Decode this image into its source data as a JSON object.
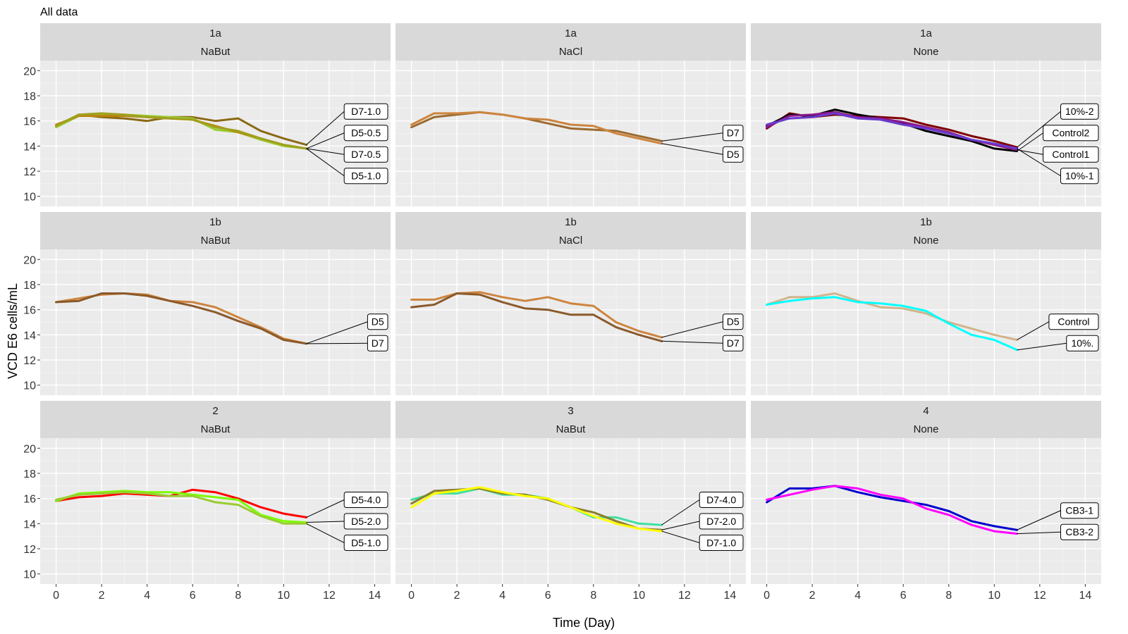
{
  "chart_data": {
    "type": "line",
    "title": "All data",
    "xlabel": "Time (Day)",
    "ylabel": "VCD E6 cells/mL",
    "xlim": [
      -0.7,
      14.7
    ],
    "ylim": [
      9.2,
      20.8
    ],
    "xticks": [
      0,
      2,
      4,
      6,
      8,
      10,
      12,
      14
    ],
    "yticks": [
      10,
      12,
      14,
      16,
      18,
      20
    ],
    "grid": true,
    "panels": [
      {
        "strip_top": "1a",
        "strip_bottom": "NaBut",
        "series": [
          {
            "name": "D7-1.0",
            "label": "D7-1.0",
            "color": "#8B6914",
            "x": [
              0,
              1,
              2,
              3,
              4,
              5,
              6,
              7,
              8,
              9,
              10,
              11
            ],
            "y": [
              15.6,
              16.5,
              16.3,
              16.2,
              16.0,
              16.3,
              16.3,
              16.0,
              16.2,
              15.2,
              14.6,
              14.1
            ]
          },
          {
            "name": "D5-0.5",
            "label": "D5-0.5",
            "color": "#9ACD32",
            "x": [
              0,
              1,
              2,
              3,
              4,
              5,
              6,
              7,
              8,
              9,
              10,
              11
            ],
            "y": [
              15.5,
              16.4,
              16.5,
              16.5,
              16.4,
              16.3,
              16.2,
              15.3,
              15.1,
              14.5,
              14.0,
              13.8
            ]
          },
          {
            "name": "D7-0.5",
            "label": "D7-0.5",
            "color": "#B8860B",
            "x": [
              0,
              1,
              2,
              3,
              4,
              5,
              6,
              7,
              8,
              9,
              10,
              11
            ],
            "y": [
              15.7,
              16.4,
              16.4,
              16.4,
              16.3,
              16.2,
              16.1,
              15.6,
              15.1,
              14.6,
              14.1,
              13.8
            ]
          },
          {
            "name": "D5-1.0",
            "label": "D5-1.0",
            "color": "#A0A020",
            "x": [
              0,
              1,
              2,
              3,
              4,
              5,
              6,
              7,
              8,
              9,
              10,
              11
            ],
            "y": [
              15.6,
              16.5,
              16.6,
              16.5,
              16.3,
              16.2,
              16.1,
              15.5,
              15.2,
              14.6,
              14.1,
              13.8
            ]
          }
        ]
      },
      {
        "strip_top": "1a",
        "strip_bottom": "NaCl",
        "series": [
          {
            "name": "D7",
            "label": "D7",
            "color": "#9C6B30",
            "x": [
              0,
              1,
              2,
              3,
              4,
              5,
              6,
              7,
              8,
              9,
              10,
              11
            ],
            "y": [
              15.5,
              16.3,
              16.5,
              16.7,
              16.5,
              16.2,
              15.8,
              15.4,
              15.3,
              15.2,
              14.8,
              14.4
            ]
          },
          {
            "name": "D5",
            "label": "D5",
            "color": "#CD853F",
            "x": [
              0,
              1,
              2,
              3,
              4,
              5,
              6,
              7,
              8,
              9,
              10,
              11
            ],
            "y": [
              15.7,
              16.6,
              16.6,
              16.7,
              16.5,
              16.2,
              16.1,
              15.7,
              15.6,
              15.0,
              14.6,
              14.2
            ]
          }
        ]
      },
      {
        "strip_top": "1a",
        "strip_bottom": "None",
        "series": [
          {
            "name": "10%-2",
            "label": "10%-2",
            "color": "#800000",
            "x": [
              0,
              1,
              2,
              3,
              4,
              5,
              6,
              7,
              8,
              9,
              10,
              11
            ],
            "y": [
              15.4,
              16.6,
              16.3,
              16.5,
              16.4,
              16.3,
              16.2,
              15.7,
              15.3,
              14.8,
              14.4,
              13.9
            ]
          },
          {
            "name": "Control2",
            "label": "Control2",
            "color": "#000000",
            "x": [
              0,
              1,
              2,
              3,
              4,
              5,
              6,
              7,
              8,
              9,
              10,
              11
            ],
            "y": [
              15.6,
              16.5,
              16.4,
              16.9,
              16.5,
              16.2,
              15.8,
              15.2,
              14.8,
              14.4,
              13.8,
              13.6
            ]
          },
          {
            "name": "Control1",
            "label": "Control1",
            "color": "#8B1A8B",
            "x": [
              0,
              1,
              2,
              3,
              4,
              5,
              6,
              7,
              8,
              9,
              10,
              11
            ],
            "y": [
              15.5,
              16.4,
              16.5,
              16.7,
              16.3,
              16.2,
              15.9,
              15.5,
              15.1,
              14.5,
              14.1,
              13.7
            ]
          },
          {
            "name": "10%-1",
            "label": "10%-1",
            "color": "#6A3ACD",
            "x": [
              0,
              1,
              2,
              3,
              4,
              5,
              6,
              7,
              8,
              9,
              10,
              11
            ],
            "y": [
              15.7,
              16.2,
              16.3,
              16.6,
              16.2,
              16.1,
              15.7,
              15.4,
              15.0,
              14.5,
              14.2,
              13.8
            ]
          }
        ]
      },
      {
        "strip_top": "1b",
        "strip_bottom": "NaBut",
        "series": [
          {
            "name": "D5",
            "label": "D5",
            "color": "#CD853F",
            "x": [
              0,
              1,
              2,
              3,
              4,
              5,
              6,
              7,
              8,
              9,
              10,
              11
            ],
            "y": [
              16.6,
              16.9,
              17.2,
              17.3,
              17.2,
              16.7,
              16.6,
              16.2,
              15.4,
              14.6,
              13.7,
              13.3
            ]
          },
          {
            "name": "D7",
            "label": "D7",
            "color": "#8B5A2B",
            "x": [
              0,
              1,
              2,
              3,
              4,
              5,
              6,
              7,
              8,
              9,
              10,
              11
            ],
            "y": [
              16.6,
              16.7,
              17.3,
              17.3,
              17.1,
              16.7,
              16.3,
              15.8,
              15.1,
              14.5,
              13.6,
              13.3
            ]
          }
        ]
      },
      {
        "strip_top": "1b",
        "strip_bottom": "NaCl",
        "series": [
          {
            "name": "D5",
            "label": "D5",
            "color": "#CD853F",
            "x": [
              0,
              1,
              2,
              3,
              4,
              5,
              6,
              7,
              8,
              9,
              10,
              11
            ],
            "y": [
              16.8,
              16.8,
              17.3,
              17.4,
              17.0,
              16.7,
              17.0,
              16.5,
              16.3,
              15.0,
              14.3,
              13.8
            ]
          },
          {
            "name": "D7",
            "label": "D7",
            "color": "#8B5A2B",
            "x": [
              0,
              1,
              2,
              3,
              4,
              5,
              6,
              7,
              8,
              9,
              10,
              11
            ],
            "y": [
              16.2,
              16.4,
              17.3,
              17.2,
              16.6,
              16.1,
              16.0,
              15.6,
              15.6,
              14.6,
              14.0,
              13.5
            ]
          }
        ]
      },
      {
        "strip_top": "1b",
        "strip_bottom": "None",
        "series": [
          {
            "name": "Control",
            "label": "Control",
            "color": "#D2B48C",
            "x": [
              0,
              1,
              2,
              3,
              4,
              5,
              6,
              7,
              8,
              9,
              10,
              11
            ],
            "y": [
              16.4,
              17.0,
              17.0,
              17.3,
              16.7,
              16.2,
              16.1,
              15.7,
              15.0,
              14.5,
              14.0,
              13.6
            ]
          },
          {
            "name": "10%.",
            "label": "10%.",
            "color": "#00FFFF",
            "x": [
              0,
              1,
              2,
              3,
              4,
              5,
              6,
              7,
              8,
              9,
              10,
              11
            ],
            "y": [
              16.4,
              16.7,
              16.9,
              17.0,
              16.6,
              16.5,
              16.3,
              15.9,
              14.9,
              14.0,
              13.6,
              12.8
            ]
          }
        ]
      },
      {
        "strip_top": "2",
        "strip_bottom": "NaBut",
        "series": [
          {
            "name": "D5-4.0",
            "label": "D5-4.0",
            "color": "#FF0000",
            "x": [
              0,
              1,
              2,
              3,
              4,
              5,
              6,
              7,
              8,
              9,
              10,
              11
            ],
            "y": [
              15.8,
              16.1,
              16.2,
              16.4,
              16.3,
              16.2,
              16.7,
              16.5,
              16.0,
              15.3,
              14.8,
              14.5
            ]
          },
          {
            "name": "D5-2.0",
            "label": "D5-2.0",
            "color": "#7CFC00",
            "x": [
              0,
              1,
              2,
              3,
              4,
              5,
              6,
              7,
              8,
              9,
              10,
              11
            ],
            "y": [
              15.8,
              16.4,
              16.5,
              16.6,
              16.5,
              16.5,
              16.3,
              16.1,
              15.9,
              14.7,
              14.2,
              14.1
            ]
          },
          {
            "name": "D5-1.0",
            "label": "D5-1.0",
            "color": "#9ACD32",
            "x": [
              0,
              1,
              2,
              3,
              4,
              5,
              6,
              7,
              8,
              9,
              10,
              11
            ],
            "y": [
              15.9,
              16.3,
              16.4,
              16.5,
              16.4,
              16.2,
              16.2,
              15.7,
              15.5,
              14.6,
              14.0,
              14.0
            ]
          }
        ]
      },
      {
        "strip_top": "3",
        "strip_bottom": "NaBut",
        "series": [
          {
            "name": "D7-4.0",
            "label": "D7-4.0",
            "color": "#40E0A0",
            "x": [
              0,
              1,
              2,
              3,
              4,
              5,
              6,
              7,
              8,
              9,
              10,
              11
            ],
            "y": [
              15.9,
              16.4,
              16.4,
              16.8,
              16.3,
              16.3,
              16.0,
              15.3,
              14.5,
              14.5,
              14.0,
              13.9
            ]
          },
          {
            "name": "D7-2.0",
            "label": "D7-2.0",
            "color": "#8B7D2B",
            "x": [
              0,
              1,
              2,
              3,
              4,
              5,
              6,
              7,
              8,
              9,
              10,
              11
            ],
            "y": [
              15.6,
              16.6,
              16.7,
              16.8,
              16.4,
              16.3,
              15.9,
              15.3,
              14.9,
              14.2,
              13.6,
              13.5
            ]
          },
          {
            "name": "D7-1.0",
            "label": "D7-1.0",
            "color": "#FFFF00",
            "x": [
              0,
              1,
              2,
              3,
              4,
              5,
              6,
              7,
              8,
              9,
              10,
              11
            ],
            "y": [
              15.3,
              16.4,
              16.6,
              16.9,
              16.5,
              16.2,
              16.0,
              15.3,
              14.6,
              14.0,
              13.6,
              13.4
            ]
          }
        ]
      },
      {
        "strip_top": "4",
        "strip_bottom": "None",
        "series": [
          {
            "name": "CB3-1",
            "label": "CB3-1",
            "color": "#0000CD",
            "x": [
              0,
              1,
              2,
              3,
              4,
              5,
              6,
              7,
              8,
              9,
              10,
              11
            ],
            "y": [
              15.7,
              16.8,
              16.8,
              17.0,
              16.5,
              16.1,
              15.8,
              15.5,
              15.0,
              14.2,
              13.8,
              13.5
            ]
          },
          {
            "name": "CB3-2",
            "label": "CB3-2",
            "color": "#FF00FF",
            "x": [
              0,
              1,
              2,
              3,
              4,
              5,
              6,
              7,
              8,
              9,
              10,
              11
            ],
            "y": [
              15.9,
              16.3,
              16.7,
              17.0,
              16.8,
              16.3,
              16.0,
              15.2,
              14.7,
              13.9,
              13.4,
              13.2
            ]
          }
        ]
      }
    ]
  }
}
